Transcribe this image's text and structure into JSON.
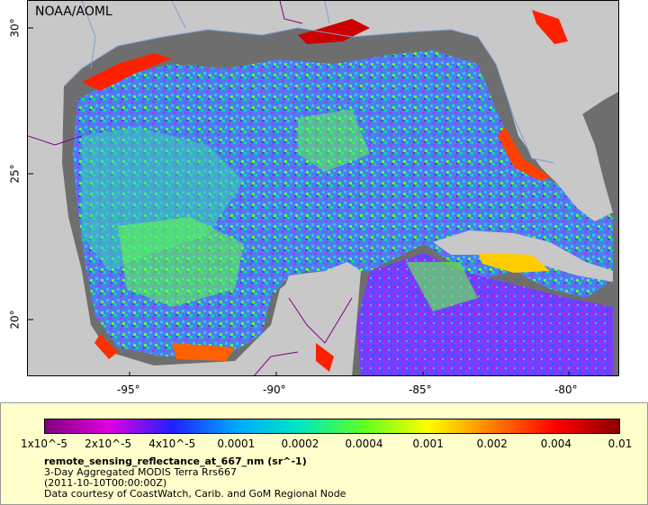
{
  "map": {
    "credit": "NOAA/AOML",
    "lon_ticks": [
      {
        "label": "-95°",
        "value": -95
      },
      {
        "label": "-90°",
        "value": -90
      },
      {
        "label": "-85°",
        "value": -85
      },
      {
        "label": "-80°",
        "value": -80
      }
    ],
    "lat_ticks": [
      {
        "label": "30°",
        "value": 30
      },
      {
        "label": "25°",
        "value": 25
      },
      {
        "label": "20°",
        "value": 20
      }
    ],
    "extent": {
      "lon_min": -98.5,
      "lon_max": -78.3,
      "lat_min": 18.0,
      "lat_max": 31.0
    },
    "colors": {
      "land": "#c8c8c8",
      "nodata_water": "#6e6e6e",
      "coastline": "#7a9fd0",
      "border": "#800080"
    }
  },
  "legend": {
    "colorbar_labels": [
      "1x10^-5",
      "2x10^-5",
      "4x10^-5",
      "0.0001",
      "0.0002",
      "0.0004",
      "0.001",
      "0.002",
      "0.004",
      "0.01"
    ],
    "colorbar_colors": [
      "#7f007f",
      "#e000e0",
      "#2020ff",
      "#00a8ff",
      "#00e8c0",
      "#60ff20",
      "#ffff00",
      "#ff8000",
      "#ff0000",
      "#8b0000"
    ],
    "variable": "remote_sensing_reflectance_at_667_nm (sr^-1)",
    "description": "3-Day Aggregated MODIS Terra Rrs667",
    "date": "(2011-10-10T00:00:00Z)",
    "courtesy": "Data courtesy of CoastWatch, Carib. and GoM Regional Node"
  }
}
